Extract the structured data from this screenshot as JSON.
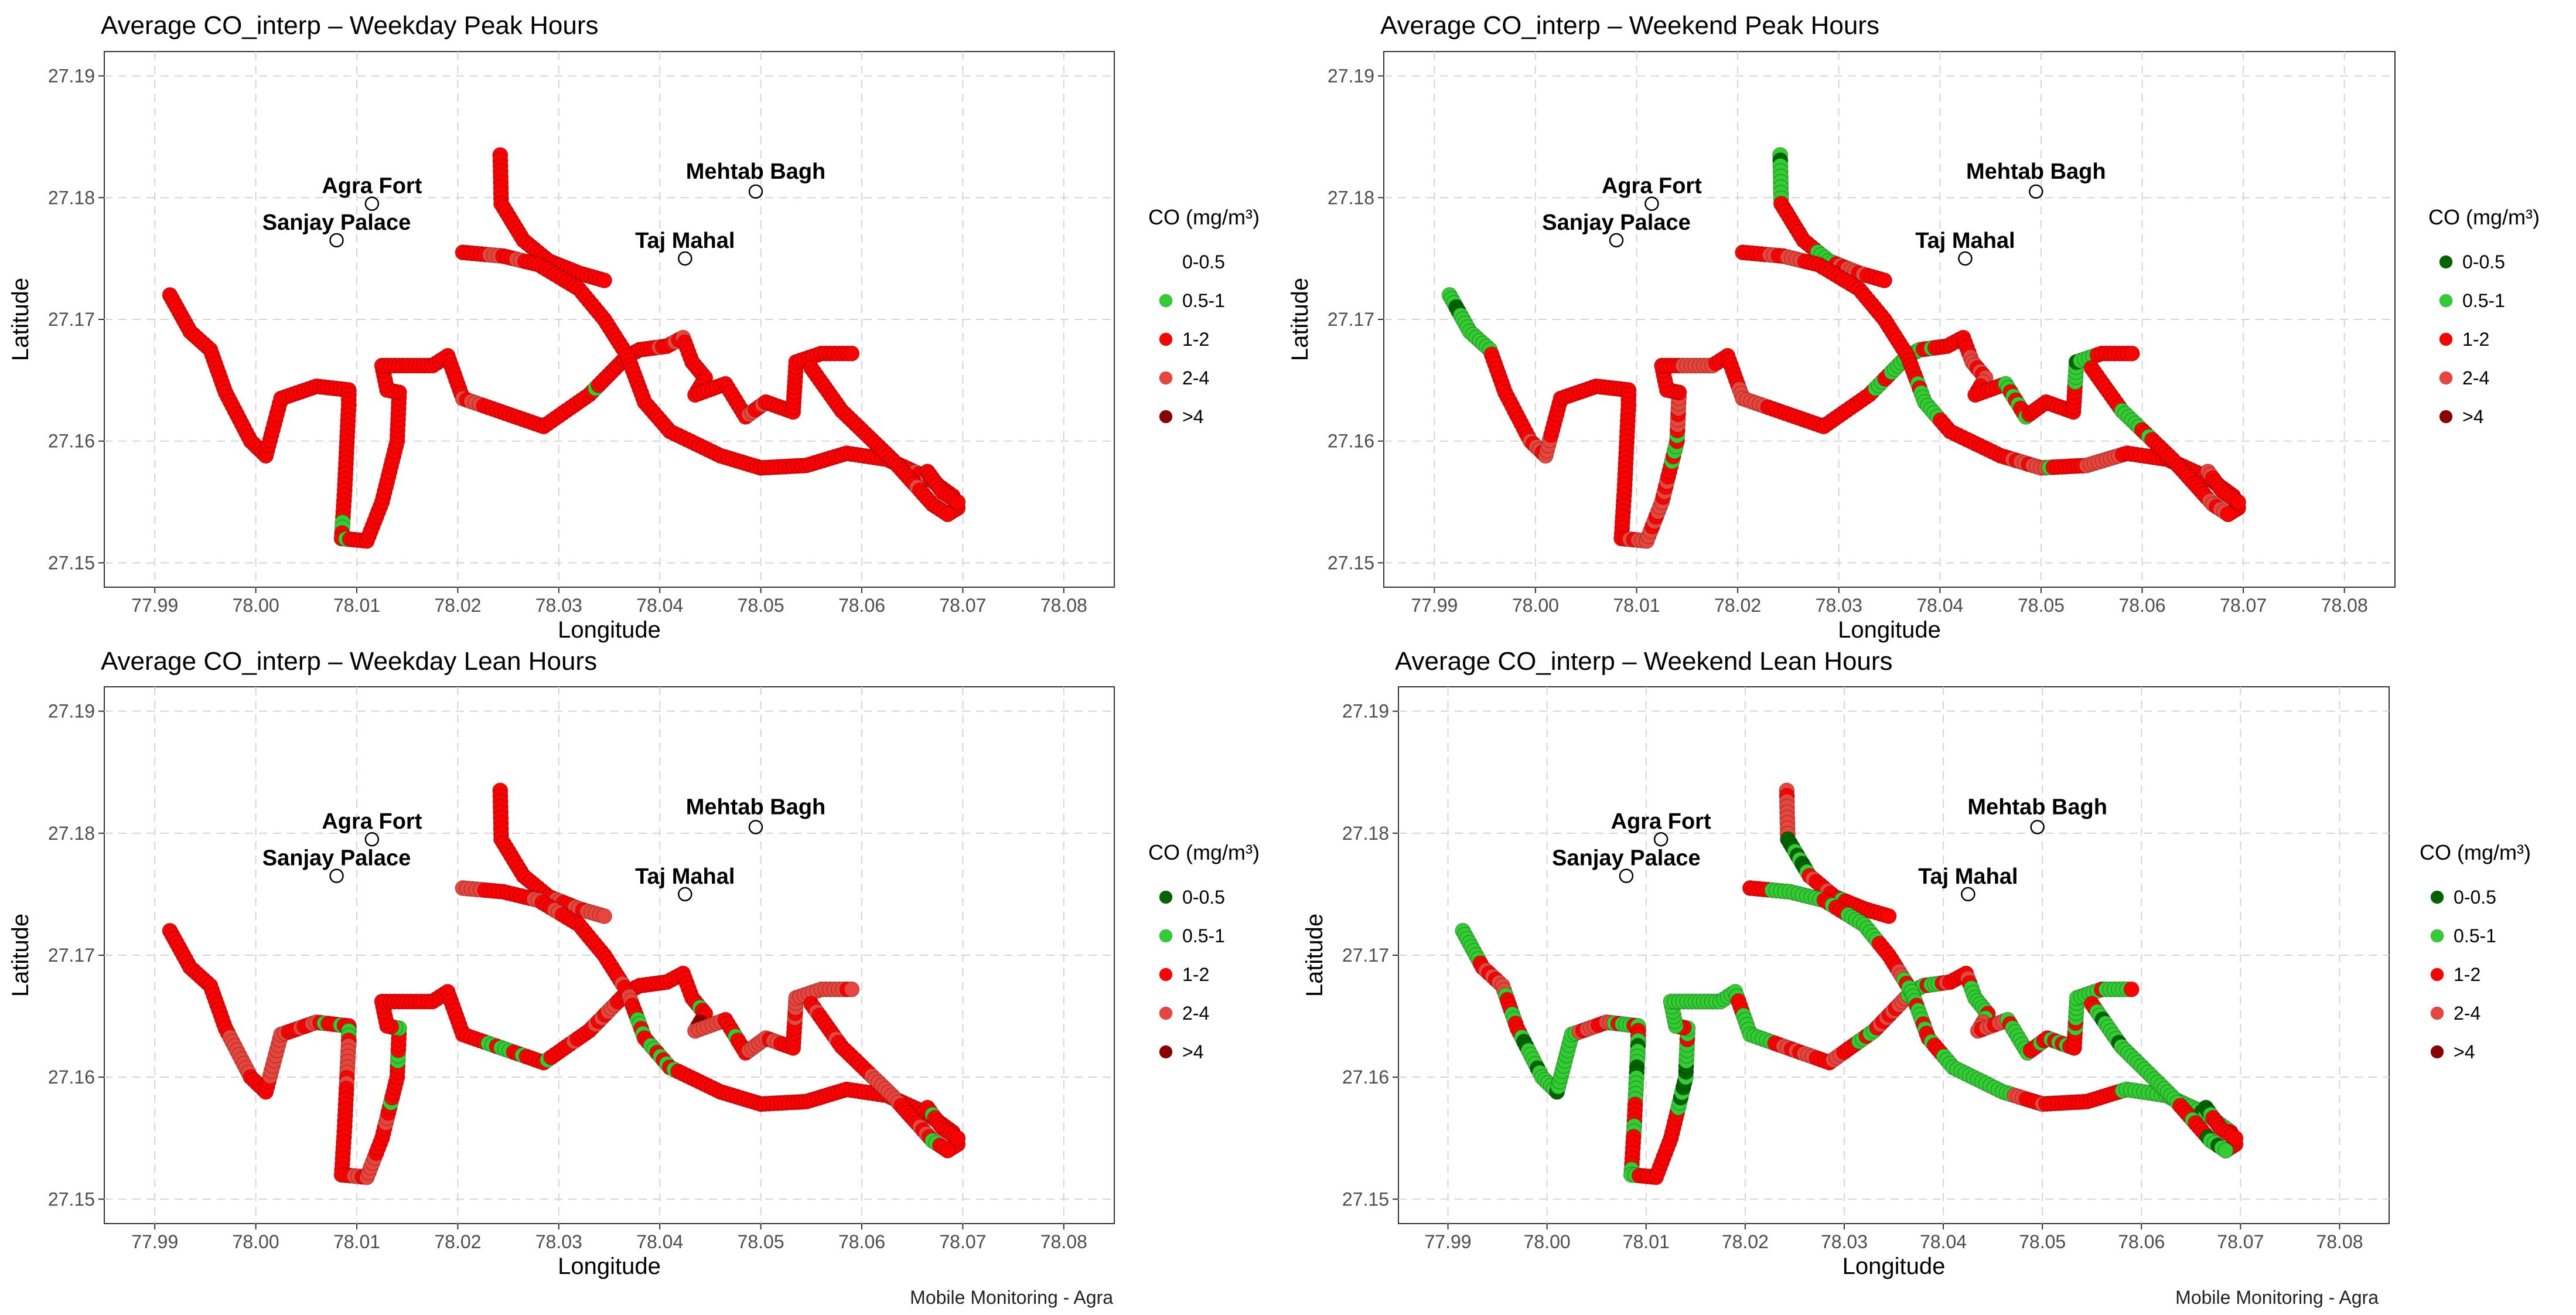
{
  "figure": {
    "caption": "Mobile Monitoring - Agra",
    "legend_title": "CO (mg/m³)"
  },
  "category_colors": {
    "0-0.5": "#006400",
    "0.5-1": "#32cd32",
    "1-2": "#ff0000",
    "2-4": "#e8453c",
    ">4": "#8b0000"
  },
  "chart_data": [
    {
      "type": "scatter",
      "title": "Average CO_interp – Weekday Peak Hours",
      "xlabel": "Longitude",
      "ylabel": "Latitude",
      "xlim": [
        77.985,
        78.085
      ],
      "ylim": [
        27.148,
        27.192
      ],
      "x_ticks": [
        "77.99",
        "78.00",
        "78.01",
        "78.02",
        "78.03",
        "78.04",
        "78.05",
        "78.06",
        "78.07",
        "78.08"
      ],
      "y_ticks": [
        "27.15",
        "27.16",
        "27.17",
        "27.18",
        "27.19"
      ],
      "grid": true,
      "legend_position": "right",
      "legend": [
        "0-0.5",
        "0.5-1",
        "1-2",
        "2-4",
        ">4"
      ],
      "legend_visible": [
        false,
        true,
        true,
        true,
        true
      ],
      "landmarks": [
        {
          "name": "Agra Fort",
          "lon": 78.0115,
          "lat": 27.1795
        },
        {
          "name": "Sanjay Palace",
          "lon": 78.008,
          "lat": 27.1765
        },
        {
          "name": "Mehtab Bagh",
          "lon": 78.0495,
          "lat": 27.1805
        },
        {
          "name": "Taj Mahal",
          "lon": 78.0425,
          "lat": 27.175
        }
      ],
      "mix": {
        "0-0.5": 0.0,
        "0.5-1": 0.05,
        "1-2": 0.83,
        "2-4": 0.12,
        ">4": 0.0
      }
    },
    {
      "type": "scatter",
      "title": "Average CO_interp – Weekend Peak Hours",
      "xlabel": "Longitude",
      "ylabel": "Latitude",
      "xlim": [
        77.985,
        78.085
      ],
      "ylim": [
        27.148,
        27.192
      ],
      "x_ticks": [
        "77.99",
        "78.00",
        "78.01",
        "78.02",
        "78.03",
        "78.04",
        "78.05",
        "78.06",
        "78.07",
        "78.08"
      ],
      "y_ticks": [
        "27.15",
        "27.16",
        "27.17",
        "27.18",
        "27.19"
      ],
      "grid": true,
      "legend_position": "right",
      "legend": [
        "0-0.5",
        "0.5-1",
        "1-2",
        "2-4",
        ">4"
      ],
      "legend_visible": [
        true,
        true,
        true,
        true,
        true
      ],
      "landmarks": [
        {
          "name": "Agra Fort",
          "lon": 78.0115,
          "lat": 27.1795
        },
        {
          "name": "Sanjay Palace",
          "lon": 78.008,
          "lat": 27.1765
        },
        {
          "name": "Mehtab Bagh",
          "lon": 78.0495,
          "lat": 27.1805
        },
        {
          "name": "Taj Mahal",
          "lon": 78.0425,
          "lat": 27.175
        }
      ],
      "mix": {
        "0-0.5": 0.07,
        "0.5-1": 0.2,
        "1-2": 0.48,
        "2-4": 0.23,
        ">4": 0.02
      }
    },
    {
      "type": "scatter",
      "title": "Average CO_interp – Weekday Lean Hours",
      "xlabel": "Longitude",
      "ylabel": "Latitude",
      "xlim": [
        77.985,
        78.085
      ],
      "ylim": [
        27.148,
        27.192
      ],
      "x_ticks": [
        "77.99",
        "78.00",
        "78.01",
        "78.02",
        "78.03",
        "78.04",
        "78.05",
        "78.06",
        "78.07",
        "78.08"
      ],
      "y_ticks": [
        "27.15",
        "27.16",
        "27.17",
        "27.18",
        "27.19"
      ],
      "grid": true,
      "legend_position": "right",
      "legend": [
        "0-0.5",
        "0.5-1",
        "1-2",
        "2-4",
        ">4"
      ],
      "legend_visible": [
        true,
        true,
        true,
        true,
        true
      ],
      "landmarks": [
        {
          "name": "Agra Fort",
          "lon": 78.0115,
          "lat": 27.1795
        },
        {
          "name": "Sanjay Palace",
          "lon": 78.008,
          "lat": 27.1765
        },
        {
          "name": "Mehtab Bagh",
          "lon": 78.0495,
          "lat": 27.1805
        },
        {
          "name": "Taj Mahal",
          "lon": 78.0425,
          "lat": 27.175
        }
      ],
      "mix": {
        "0-0.5": 0.01,
        "0.5-1": 0.12,
        "1-2": 0.55,
        "2-4": 0.3,
        ">4": 0.02
      }
    },
    {
      "type": "scatter",
      "title": "Average CO_interp – Weekend Lean Hours",
      "xlabel": "Longitude",
      "ylabel": "Latitude",
      "xlim": [
        77.985,
        78.085
      ],
      "ylim": [
        27.148,
        27.192
      ],
      "x_ticks": [
        "77.99",
        "78.00",
        "78.01",
        "78.02",
        "78.03",
        "78.04",
        "78.05",
        "78.06",
        "78.07",
        "78.08"
      ],
      "y_ticks": [
        "27.15",
        "27.16",
        "27.17",
        "27.18",
        "27.19"
      ],
      "grid": true,
      "legend_position": "right",
      "legend": [
        "0-0.5",
        "0.5-1",
        "1-2",
        "2-4",
        ">4"
      ],
      "legend_visible": [
        true,
        true,
        true,
        true,
        true
      ],
      "landmarks": [
        {
          "name": "Agra Fort",
          "lon": 78.0115,
          "lat": 27.1795
        },
        {
          "name": "Sanjay Palace",
          "lon": 78.008,
          "lat": 27.1765
        },
        {
          "name": "Mehtab Bagh",
          "lon": 78.0495,
          "lat": 27.1805
        },
        {
          "name": "Taj Mahal",
          "lon": 78.0425,
          "lat": 27.175
        }
      ],
      "mix": {
        "0-0.5": 0.13,
        "0.5-1": 0.37,
        "1-2": 0.3,
        "2-4": 0.18,
        ">4": 0.02
      }
    }
  ],
  "route": {
    "segments": [
      [
        [
          77.9915,
          27.172
        ],
        [
          77.9935,
          27.169
        ],
        [
          77.9955,
          27.1675
        ],
        [
          77.997,
          27.164
        ],
        [
          77.9995,
          27.16
        ],
        [
          78.001,
          27.1588
        ],
        [
          78.0025,
          27.1635
        ],
        [
          78.006,
          27.1645
        ],
        [
          78.0092,
          27.1642
        ],
        [
          78.0092,
          27.163
        ],
        [
          78.0088,
          27.156
        ],
        [
          78.0085,
          27.152
        ],
        [
          78.011,
          27.1518
        ],
        [
          78.0125,
          27.155
        ],
        [
          78.014,
          27.16
        ],
        [
          78.0142,
          27.164
        ],
        [
          78.013,
          27.1642
        ],
        [
          78.0125,
          27.1662
        ],
        [
          78.0175,
          27.1662
        ],
        [
          78.019,
          27.167
        ],
        [
          78.0205,
          27.1635
        ],
        [
          78.0285,
          27.1612
        ],
        [
          78.033,
          27.1638
        ],
        [
          78.0368,
          27.167
        ],
        [
          78.038,
          27.1675
        ],
        [
          78.0407,
          27.1678
        ],
        [
          78.0423,
          27.1685
        ],
        [
          78.0432,
          27.1665
        ],
        [
          78.0445,
          27.1652
        ],
        [
          78.0435,
          27.1638
        ],
        [
          78.0465,
          27.1647
        ],
        [
          78.0485,
          27.162
        ],
        [
          78.0505,
          27.1632
        ],
        [
          78.0532,
          27.1624
        ],
        [
          78.0535,
          27.1665
        ],
        [
          78.056,
          27.1672
        ],
        [
          78.059,
          27.1672
        ]
      ],
      [
        [
          78.0242,
          27.1835
        ],
        [
          78.0243,
          27.1795
        ],
        [
          78.0265,
          27.1765
        ],
        [
          78.029,
          27.1748
        ],
        [
          78.032,
          27.1738
        ],
        [
          78.0345,
          27.1732
        ]
      ],
      [
        [
          78.0205,
          27.1755
        ],
        [
          78.0245,
          27.1752
        ],
        [
          78.028,
          27.1745
        ],
        [
          78.032,
          27.1725
        ],
        [
          78.0345,
          27.17
        ],
        [
          78.0368,
          27.167
        ],
        [
          78.0385,
          27.1632
        ],
        [
          78.041,
          27.1608
        ],
        [
          78.046,
          27.1588
        ],
        [
          78.05,
          27.1578
        ],
        [
          78.0545,
          27.158
        ],
        [
          78.0585,
          27.159
        ],
        [
          78.0625,
          27.1585
        ],
        [
          78.0665,
          27.157
        ],
        [
          78.069,
          27.1555
        ],
        [
          78.0695,
          27.1545
        ],
        [
          78.0685,
          27.154
        ]
      ],
      [
        [
          78.055,
          27.166
        ],
        [
          78.058,
          27.1625
        ],
        [
          78.063,
          27.1585
        ],
        [
          78.067,
          27.1548
        ],
        [
          78.0685,
          27.154
        ]
      ],
      [
        [
          78.0665,
          27.1575
        ],
        [
          78.068,
          27.1558
        ],
        [
          78.0695,
          27.155
        ]
      ]
    ]
  }
}
